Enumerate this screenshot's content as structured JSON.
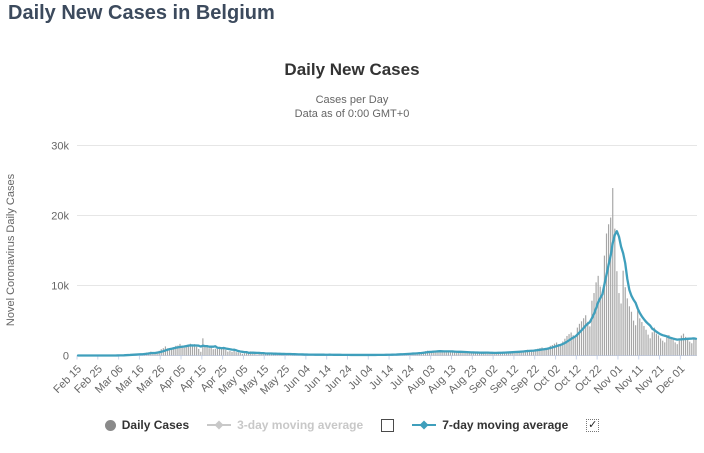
{
  "page": {
    "title": "Daily New Cases in Belgium"
  },
  "chart": {
    "title": "Daily New Cases",
    "subtitle_line1": "Cases per Day",
    "subtitle_line2": "Data as of 0:00 GMT+0"
  },
  "ui": {
    "check_glyph": "✓"
  },
  "legend": {
    "items": [
      {
        "label": "Daily Cases",
        "marker": "circle",
        "color": "#8a8a8a",
        "active": true
      },
      {
        "label": "3-day moving average",
        "marker": "line-diamond",
        "color": "#c8c8c8",
        "active": false,
        "checkbox": "unchecked"
      },
      {
        "label": "7-day moving average",
        "marker": "line-diamond",
        "color": "#3f9fbc",
        "active": true,
        "checkbox": "checked"
      }
    ]
  },
  "chart_data": {
    "type": "bar",
    "title": "Daily New Cases",
    "subtitle": "Cases per Day — Data as of 0:00 GMT+0",
    "xlabel": "",
    "ylabel": "Novel Coronavirus Daily Cases",
    "ylim": [
      0,
      30000
    ],
    "grid": true,
    "legend_position": "bottom",
    "x_start_date": "Feb 15",
    "x_tick_interval_days": 10,
    "x_tick_labels": [
      "Feb 15",
      "Feb 25",
      "Mar 06",
      "Mar 16",
      "Mar 26",
      "Apr 05",
      "Apr 15",
      "Apr 25",
      "May 05",
      "May 15",
      "May 25",
      "Jun 04",
      "Jun 14",
      "Jun 24",
      "Jul 04",
      "Jul 14",
      "Jul 24",
      "Aug 03",
      "Aug 13",
      "Aug 23",
      "Sep 02",
      "Sep 12",
      "Sep 22",
      "Oct 02",
      "Oct 12",
      "Oct 22",
      "Nov 01",
      "Nov 11",
      "Nov 21",
      "Dec 01"
    ],
    "y_axis": {
      "ticks": [
        {
          "value": 0,
          "label": "0"
        },
        {
          "value": 10000,
          "label": "10k"
        },
        {
          "value": 20000,
          "label": "20k"
        },
        {
          "value": 30000,
          "label": "30k"
        }
      ]
    },
    "colors": {
      "bars": "#a6a6a6",
      "ma7_line": "#3f9fbc",
      "grid_line": "#e6e6e6",
      "axis_line": "#ccd6eb",
      "tick_text": "#666666"
    },
    "series": [
      {
        "name": "Daily Cases",
        "type": "bar",
        "color": "#a6a6a6",
        "visible": true,
        "values": [
          0,
          0,
          0,
          0,
          0,
          0,
          0,
          0,
          0,
          0,
          0,
          0,
          0,
          1,
          1,
          2,
          3,
          6,
          10,
          23,
          45,
          59,
          60,
          130,
          133,
          85,
          160,
          197,
          185,
          200,
          243,
          185,
          309,
          422,
          462,
          558,
          342,
          254,
          526,
          668,
          903,
          1049,
          1298,
          1021,
          876,
          946,
          1189,
          1384,
          1422,
          1661,
          1260,
          1123,
          1380,
          1580,
          1684,
          1351,
          1629,
          1260,
          942,
          530,
          2454,
          1236,
          1329,
          1045,
          1313,
          898,
          973,
          933,
          1096,
          1032,
          1230,
          809,
          553,
          647,
          525,
          985,
          485,
          445,
          364,
          242,
          314,
          534,
          285,
          591,
          485,
          247,
          161,
          330,
          307,
          275,
          345,
          291,
          269,
          156,
          192,
          276,
          252,
          245,
          168,
          250,
          136,
          187,
          229,
          157,
          181,
          130,
          93,
          136,
          120,
          124,
          140,
          138,
          111,
          81,
          87,
          151,
          134,
          97,
          130,
          88,
          85,
          105,
          109,
          90,
          104,
          92,
          94,
          64,
          70,
          86,
          95,
          82,
          91,
          70,
          66,
          74,
          85,
          90,
          82,
          88,
          72,
          66,
          81,
          95,
          104,
          117,
          105,
          86,
          93,
          130,
          141,
          156,
          162,
          185,
          216,
          178,
          205,
          254,
          306,
          296,
          325,
          365,
          280,
          336,
          402,
          465,
          536,
          620,
          688,
          510,
          445,
          595,
          640,
          702,
          745,
          560,
          430,
          480,
          587,
          642,
          610,
          565,
          420,
          390,
          455,
          520,
          556,
          480,
          430,
          320,
          310,
          405,
          442,
          470,
          455,
          420,
          365,
          290,
          310,
          395,
          420,
          446,
          480,
          410,
          330,
          395,
          486,
          530,
          562,
          610,
          545,
          430,
          520,
          646,
          708,
          765,
          810,
          745,
          580,
          620,
          896,
          985,
          1056,
          1152,
          980,
          860,
          1125,
          1386,
          1498,
          1685,
          1860,
          1625,
          1450,
          1998,
          2398,
          2790,
          3056,
          3286,
          2895,
          2510,
          3986,
          4525,
          4890,
          5320,
          5752,
          4820,
          4160,
          7826,
          8920,
          10448,
          11380,
          9850,
          8460,
          14270,
          17432,
          18746,
          19709,
          23921,
          18122,
          12042,
          8920,
          7430,
          12120,
          9760,
          8162,
          7028,
          6250,
          4986,
          4321,
          6436,
          5312,
          4780,
          4220,
          3680,
          2980,
          2456,
          3315,
          3986,
          3120,
          2876,
          2450,
          2120,
          1876,
          2760,
          2925,
          2560,
          2212,
          1876,
          1620,
          2123,
          2850,
          3120,
          2660,
          2445,
          1980,
          1750,
          2314,
          2480
        ]
      },
      {
        "name": "3-day moving average",
        "type": "line",
        "color": "#c8c8c8",
        "visible": false,
        "values": []
      },
      {
        "name": "7-day moving average",
        "type": "line",
        "color": "#3f9fbc",
        "visible": true,
        "derived": "7-day moving average of Daily Cases"
      }
    ]
  }
}
